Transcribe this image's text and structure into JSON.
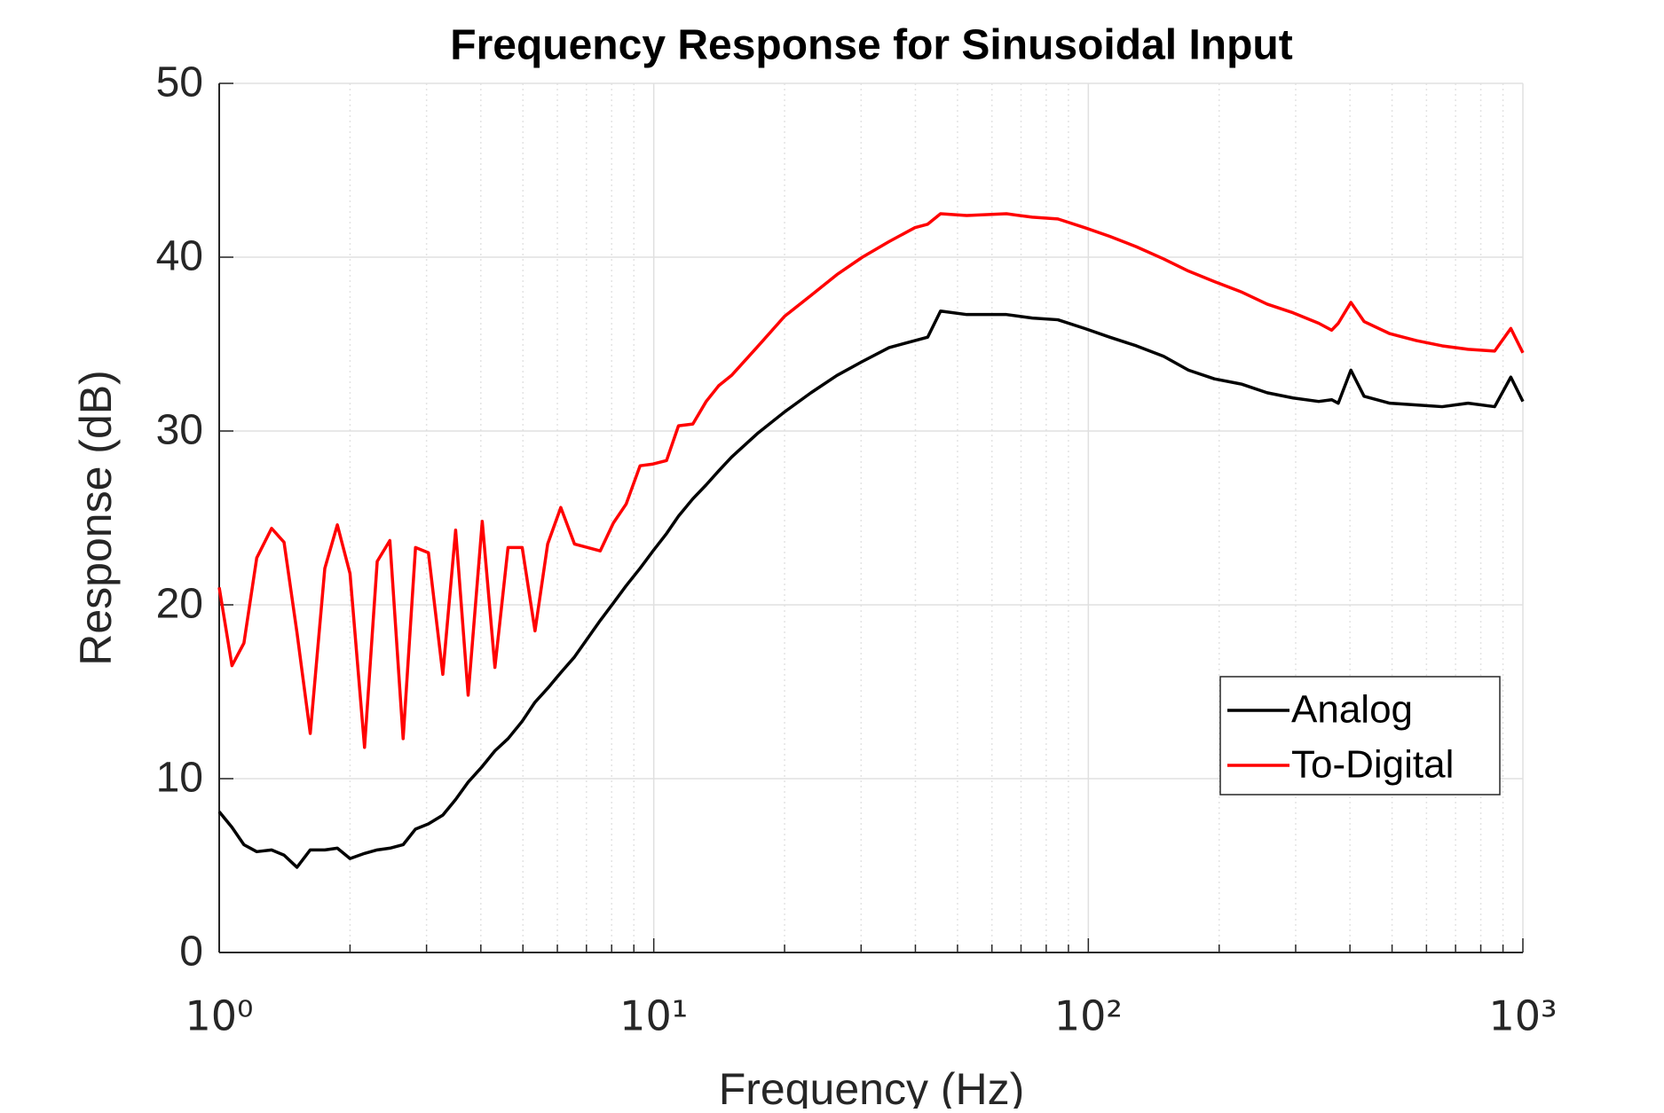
{
  "chart_data": {
    "type": "line",
    "title": "Frequency Response for Sinusoidal Input",
    "x_label": "Frequency (Hz)",
    "y_label": "Response (dB)",
    "x_scale": "log",
    "x": [
      1,
      1.07,
      1.14,
      1.22,
      1.32,
      1.41,
      1.51,
      1.62,
      1.75,
      1.87,
      2.0,
      2.16,
      2.31,
      2.47,
      2.65,
      2.83,
      3.03,
      3.27,
      3.5,
      3.74,
      4.03,
      4.31,
      4.62,
      4.98,
      5.33,
      5.7,
      6.11,
      6.57,
      7.53,
      8.07,
      8.64,
      9.3,
      9.96,
      10.7,
      11.4,
      12.3,
      13.2,
      14.1,
      15.1,
      17.4,
      20,
      23,
      26.4,
      30.2,
      34.8,
      39.9,
      42.7,
      45.7,
      52.5,
      64.8,
      74.3,
      85.1,
      98.1,
      112,
      129,
      149,
      170,
      195,
      225,
      258,
      296,
      339,
      363,
      376,
      402,
      431,
      494,
      569,
      652,
      748,
      861,
      938,
      1000
    ],
    "series": [
      {
        "name": "Analog",
        "color": "#000000",
        "values": [
          8.1,
          7.2,
          6.2,
          5.8,
          5.9,
          5.6,
          4.9,
          5.9,
          5.9,
          6.0,
          5.4,
          5.7,
          5.9,
          6.0,
          6.2,
          7.1,
          7.4,
          7.9,
          8.8,
          9.8,
          10.7,
          11.6,
          12.3,
          13.3,
          14.4,
          15.2,
          16.1,
          17.0,
          19.1,
          20.1,
          21.1,
          22.1,
          23.1,
          24.1,
          25.1,
          26.1,
          26.9,
          27.7,
          28.5,
          29.9,
          31.1,
          32.2,
          33.2,
          34.0,
          34.8,
          35.2,
          35.4,
          36.9,
          36.7,
          36.7,
          36.5,
          36.4,
          35.9,
          35.4,
          34.9,
          34.3,
          33.5,
          33.0,
          32.7,
          32.2,
          31.9,
          31.7,
          31.8,
          31.6,
          33.5,
          32.0,
          31.6,
          31.5,
          31.4,
          31.6,
          31.4,
          33.1,
          31.7
        ]
      },
      {
        "name": "To-Digital",
        "color": "#ff0000",
        "values": [
          21.0,
          16.5,
          17.8,
          22.7,
          24.4,
          23.6,
          18.4,
          12.6,
          22.1,
          24.6,
          21.8,
          11.8,
          22.5,
          23.7,
          12.3,
          23.3,
          23.0,
          16.0,
          24.3,
          14.8,
          24.8,
          16.4,
          23.3,
          23.3,
          18.5,
          23.5,
          25.6,
          23.5,
          23.1,
          24.7,
          25.8,
          28.0,
          28.1,
          28.3,
          30.3,
          30.4,
          31.7,
          32.6,
          33.2,
          34.9,
          36.6,
          37.8,
          39.0,
          40.0,
          40.9,
          41.7,
          41.9,
          42.5,
          42.4,
          42.5,
          42.3,
          42.2,
          41.7,
          41.2,
          40.6,
          39.9,
          39.2,
          38.6,
          38.0,
          37.3,
          36.8,
          36.2,
          35.8,
          36.2,
          37.4,
          36.3,
          35.6,
          35.2,
          34.9,
          34.7,
          34.6,
          35.9,
          34.5
        ]
      }
    ],
    "xlim": [
      1,
      1000
    ],
    "xticks": [
      {
        "value": 1,
        "label": "10⁰"
      },
      {
        "value": 10,
        "label": "10¹"
      },
      {
        "value": 100,
        "label": "10²"
      },
      {
        "value": 1000,
        "label": "10³"
      }
    ],
    "xminorticks": [
      2,
      3,
      4,
      5,
      6,
      7,
      8,
      9,
      20,
      30,
      40,
      50,
      60,
      70,
      80,
      90,
      200,
      300,
      400,
      500,
      600,
      700,
      800,
      900
    ],
    "ylim": [
      0,
      50
    ],
    "yticks": [
      0,
      10,
      20,
      30,
      40,
      50
    ],
    "grid": true,
    "legend": "southeast"
  }
}
